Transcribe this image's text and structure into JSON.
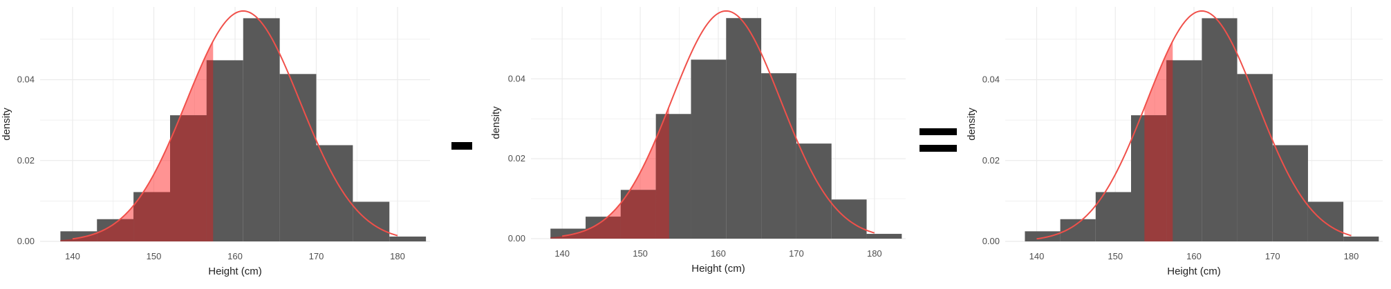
{
  "operators": {
    "minus": "-",
    "equals": "="
  },
  "colors": {
    "bar": "#595959",
    "curve": "#f0504a",
    "fill": "#ff4b4b",
    "fill_dark": "#a03a3a",
    "grid": "#ebebeb",
    "text": "#4d4d4d"
  },
  "chart_data": [
    {
      "type": "bar",
      "xlabel": "Height (cm)",
      "ylabel": "density",
      "xlim": [
        136,
        184
      ],
      "ylim": [
        0,
        0.058
      ],
      "x_ticks": [
        "140",
        "150",
        "160",
        "170",
        "180"
      ],
      "y_ticks": [
        "0.00",
        "0.02",
        "0.04"
      ],
      "bins": [
        [
          138.5,
          143
        ],
        [
          143,
          147.5
        ],
        [
          147.5,
          152
        ],
        [
          152,
          156.5
        ],
        [
          156.5,
          161
        ],
        [
          161,
          165.5
        ],
        [
          165.5,
          170
        ],
        [
          170,
          174.5
        ],
        [
          174.5,
          179
        ],
        [
          179,
          183.5
        ]
      ],
      "values": [
        0.0025,
        0.0055,
        0.0122,
        0.0312,
        0.0448,
        0.0552,
        0.0414,
        0.0238,
        0.0098,
        0.0012
      ],
      "normal_curve": {
        "mean": 161,
        "sd": 7.0
      },
      "shaded_region": [
        138.5,
        157.3
      ],
      "grid": true
    },
    {
      "type": "bar",
      "xlabel": "Height (cm)",
      "ylabel": "density",
      "xlim": [
        136,
        184
      ],
      "ylim": [
        0,
        0.058
      ],
      "x_ticks": [
        "140",
        "150",
        "160",
        "170",
        "180"
      ],
      "y_ticks": [
        "0.00",
        "0.02",
        "0.04"
      ],
      "bins": [
        [
          138.5,
          143
        ],
        [
          143,
          147.5
        ],
        [
          147.5,
          152
        ],
        [
          152,
          156.5
        ],
        [
          156.5,
          161
        ],
        [
          161,
          165.5
        ],
        [
          165.5,
          170
        ],
        [
          170,
          174.5
        ],
        [
          174.5,
          179
        ],
        [
          179,
          183.5
        ]
      ],
      "values": [
        0.0025,
        0.0055,
        0.0122,
        0.0312,
        0.0448,
        0.0552,
        0.0414,
        0.0238,
        0.0098,
        0.0012
      ],
      "normal_curve": {
        "mean": 161,
        "sd": 7.0
      },
      "shaded_region": [
        138.5,
        153.7
      ],
      "grid": true
    },
    {
      "type": "bar",
      "xlabel": "Height (cm)",
      "ylabel": "density",
      "xlim": [
        136,
        184
      ],
      "ylim": [
        0,
        0.058
      ],
      "x_ticks": [
        "140",
        "150",
        "160",
        "170",
        "180"
      ],
      "y_ticks": [
        "0.00",
        "0.02",
        "0.04"
      ],
      "bins": [
        [
          138.5,
          143
        ],
        [
          143,
          147.5
        ],
        [
          147.5,
          152
        ],
        [
          152,
          156.5
        ],
        [
          156.5,
          161
        ],
        [
          161,
          165.5
        ],
        [
          165.5,
          170
        ],
        [
          170,
          174.5
        ],
        [
          174.5,
          179
        ],
        [
          179,
          183.5
        ]
      ],
      "values": [
        0.0025,
        0.0055,
        0.0122,
        0.0312,
        0.0448,
        0.0552,
        0.0414,
        0.0238,
        0.0098,
        0.0012
      ],
      "normal_curve": {
        "mean": 161,
        "sd": 7.0
      },
      "shaded_region": [
        153.7,
        157.3
      ],
      "grid": true
    }
  ]
}
